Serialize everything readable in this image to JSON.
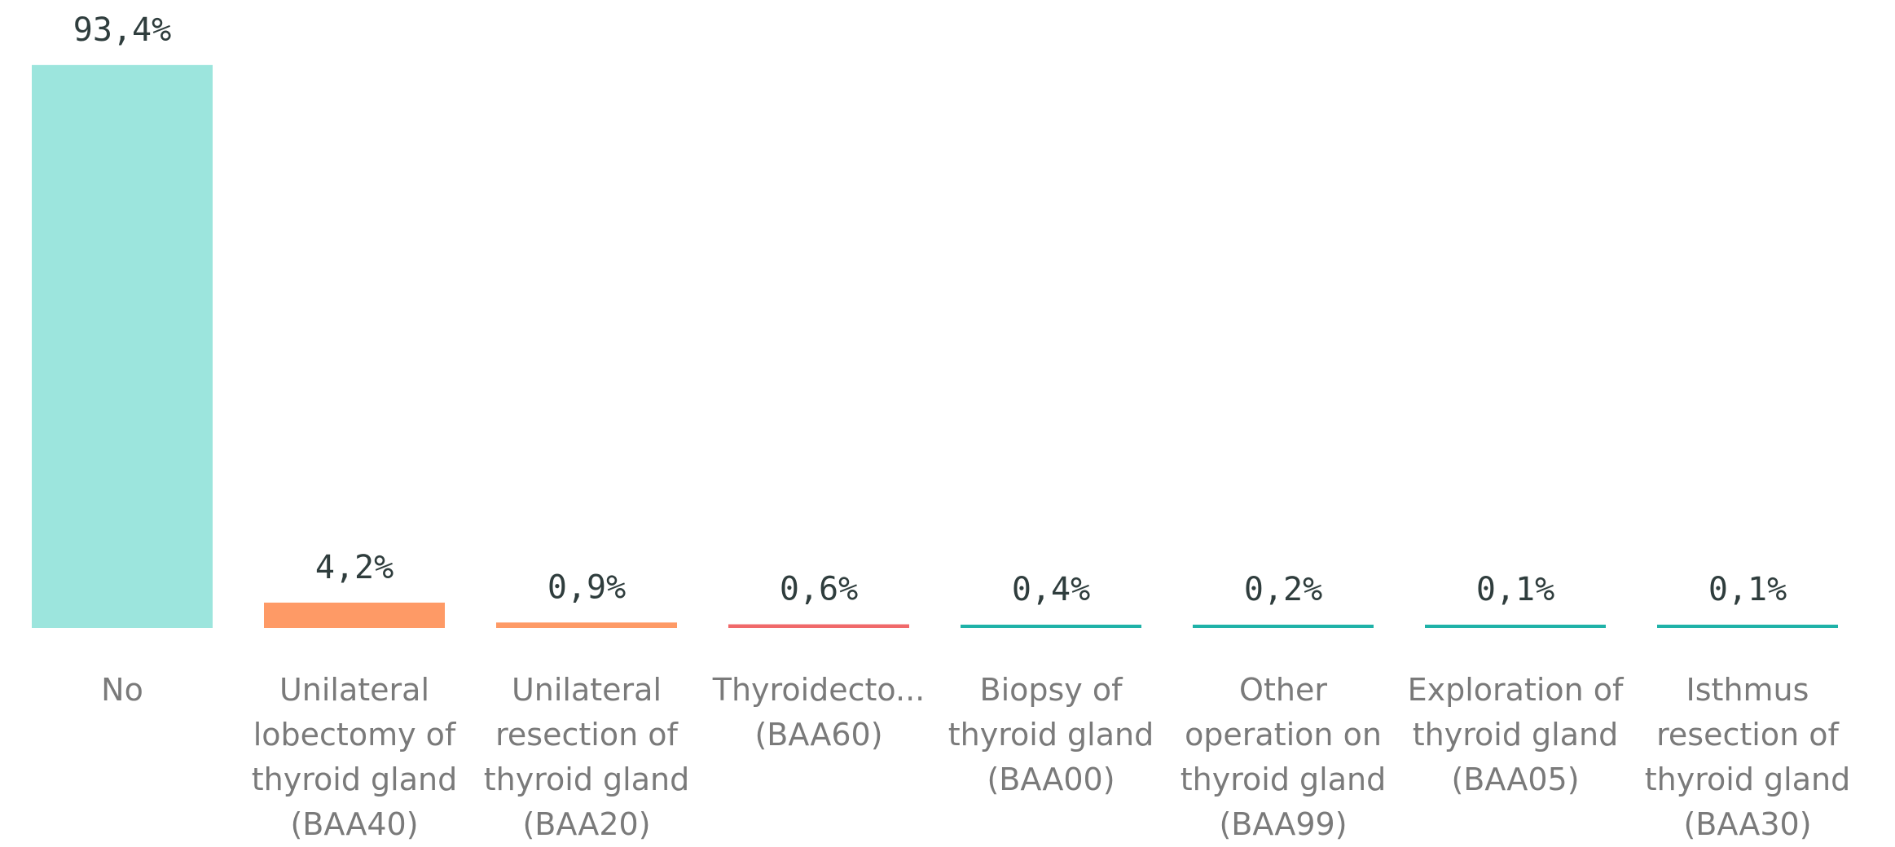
{
  "chart_data": {
    "type": "bar",
    "categories": [
      "No",
      "Unilateral lobectomy of thyroid gland (BAA40)",
      "Unilateral resection of thyroid gland (BAA20)",
      "Thyroidecto... (BAA60)",
      "Biopsy of thyroid gland (BAA00)",
      "Other operation on thyroid gland (BAA99)",
      "Exploration of thyroid gland (BAA05)",
      "Isthmus resection of thyroid gland (BAA30)"
    ],
    "values": [
      93.4,
      4.2,
      0.9,
      0.6,
      0.4,
      0.2,
      0.1,
      0.1
    ],
    "value_labels": [
      "93,4%",
      "4,2%",
      "0,9%",
      "0,6%",
      "0,4%",
      "0,2%",
      "0,1%",
      "0,1%"
    ],
    "colors": [
      "#9ce5dd",
      "#fe9a66",
      "#fe9a66",
      "#f0696a",
      "#1fb2a8",
      "#1fb2a8",
      "#1fb2a8",
      "#1fb2a8"
    ],
    "ylim": [
      0,
      100
    ]
  }
}
